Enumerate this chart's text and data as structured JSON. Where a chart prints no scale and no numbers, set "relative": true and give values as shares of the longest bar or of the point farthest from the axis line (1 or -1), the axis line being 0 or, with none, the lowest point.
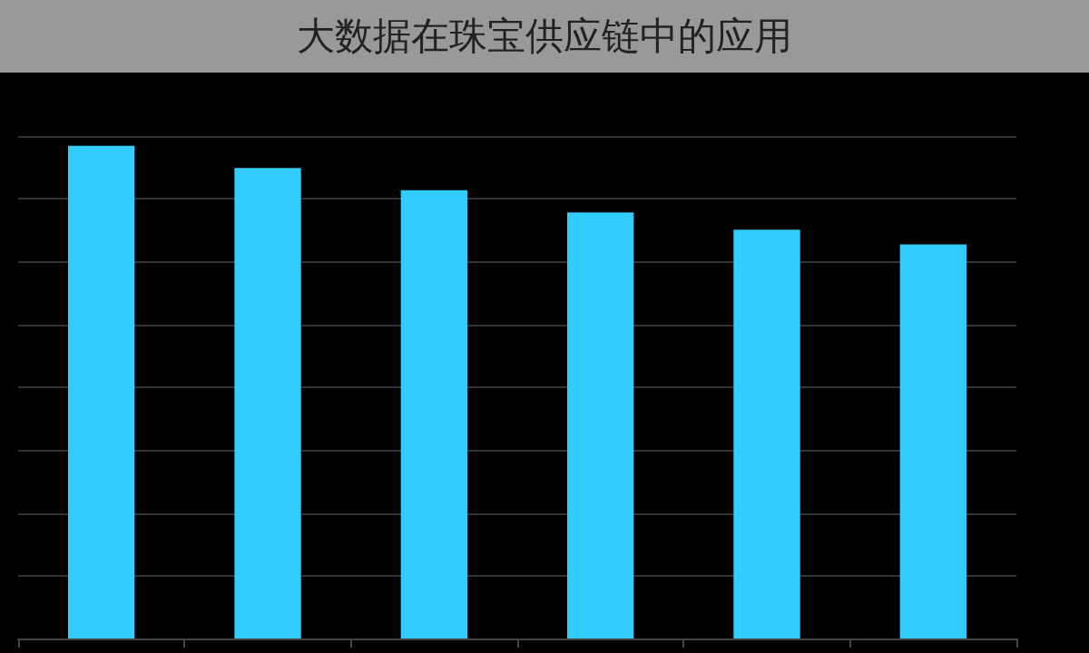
{
  "chart_data": {
    "type": "bar",
    "title": "大数据在珠宝供应链中的应用",
    "categories": [
      null,
      null,
      null,
      null,
      null,
      null
    ],
    "values": [
      1,
      0.955,
      0.91,
      0.865,
      0.83,
      0.8
    ],
    "color": "#33ccff",
    "relative": true,
    "grid": "y"
  }
}
